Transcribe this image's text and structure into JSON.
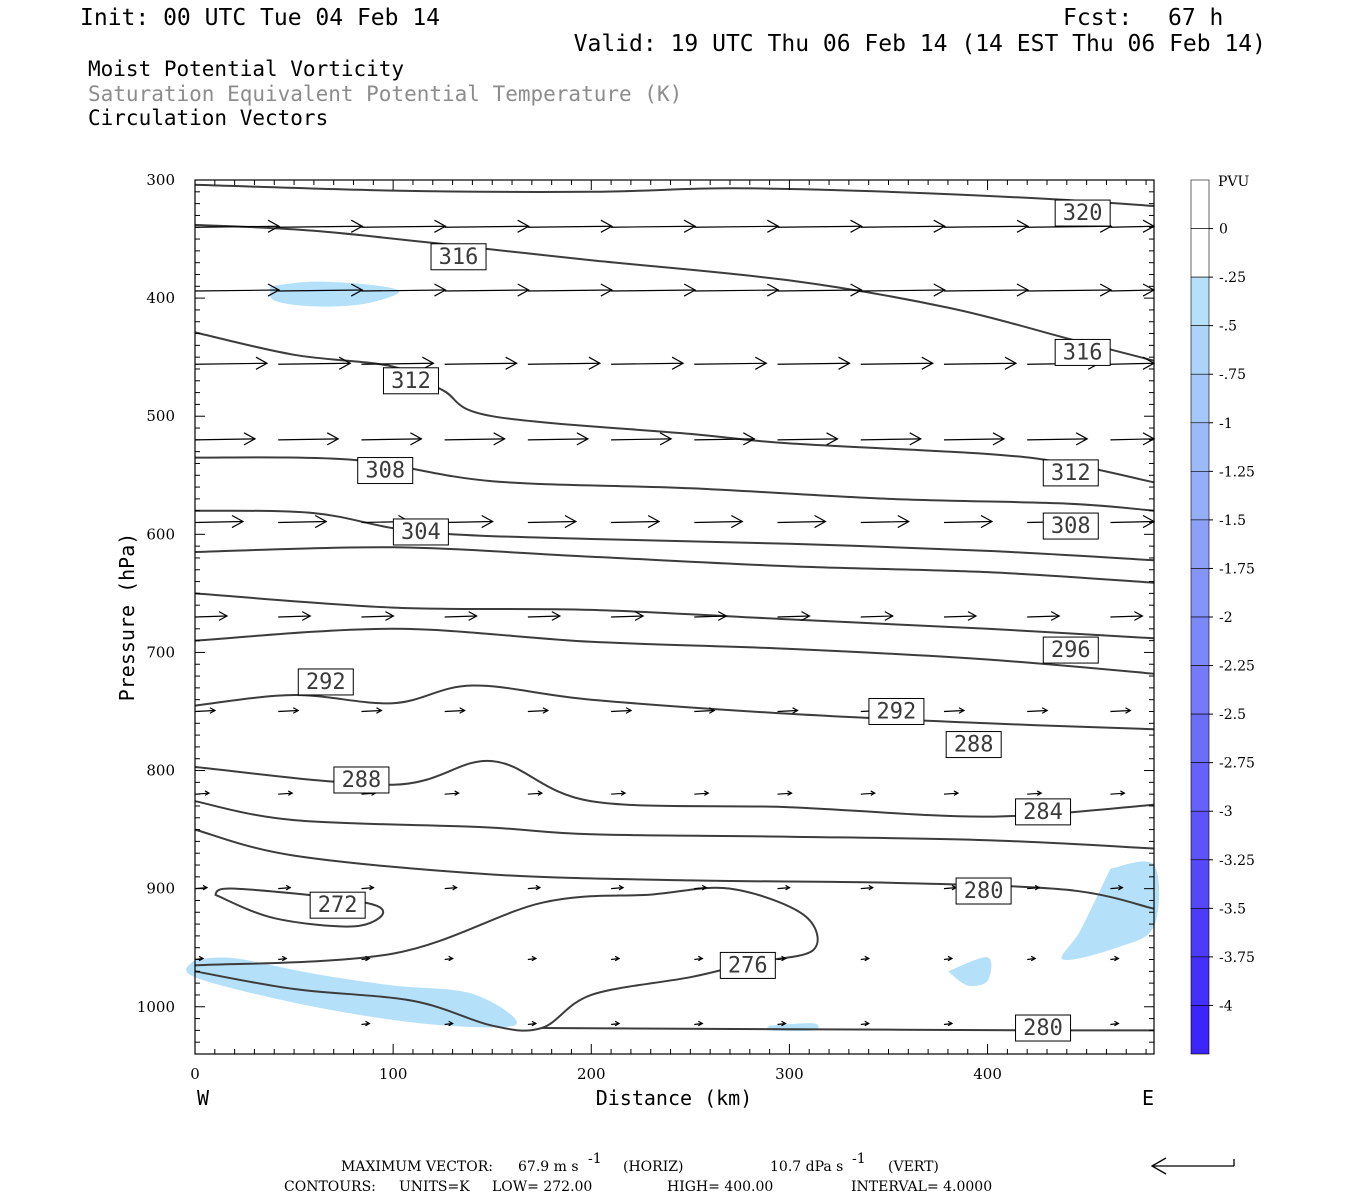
{
  "header": {
    "init": "Init: 00 UTC Tue 04 Feb 14",
    "fcst_label": "Fcst:",
    "fcst_value": "67 h",
    "valid": "Valid: 19 UTC Thu 06 Feb 14 (14 EST Thu 06 Feb 14)",
    "field1": "Moist Potential Vorticity",
    "field2": "Saturation Equivalent Potential Temperature (K)",
    "field3": "Circulation Vectors"
  },
  "colors": {
    "contour": "#3c3c3c",
    "pv_fill": "#b4e0fa",
    "grey_text": "#8c8c8c"
  },
  "chart_data": {
    "type": "cross-section",
    "xlabel": "Distance (km)",
    "ylabel": "Pressure (hPa)",
    "x_range": [
      0,
      484
    ],
    "y_range": [
      300,
      1040
    ],
    "x_ticks": [
      "0",
      "100",
      "200",
      "300",
      "400"
    ],
    "y_ticks": [
      "300",
      "400",
      "500",
      "600",
      "700",
      "800",
      "900",
      "1000"
    ],
    "x_ends": {
      "left": "W",
      "right": "E"
    },
    "colorbar": {
      "units": "PVU",
      "labels": [
        "0",
        "-.25",
        "-.5",
        "-.75",
        "-1",
        "-1.25",
        "-1.5",
        "-1.75",
        "-2",
        "-2.25",
        "-2.5",
        "-2.75",
        "-3",
        "-3.25",
        "-3.5",
        "-3.75",
        "-4"
      ],
      "colors": [
        "#ffffff",
        "#ffffff",
        "#b4e0fa",
        "#acd4fa",
        "#a4c8fa",
        "#9cbafa",
        "#94aefa",
        "#8ca0fa",
        "#8494fa",
        "#7c88fa",
        "#747afa",
        "#6c6efa",
        "#6462fa",
        "#5c54fa",
        "#5448fa",
        "#4c3cfa",
        "#4430fa",
        "#3c24fa"
      ]
    },
    "contours": [
      {
        "label": "320",
        "points": [
          [
            0,
            304
          ],
          [
            100,
            309
          ],
          [
            200,
            310
          ],
          [
            270,
            307
          ],
          [
            350,
            310
          ],
          [
            430,
            316
          ],
          [
            484,
            322
          ]
        ],
        "labels_at": [
          [
            448,
            328
          ]
        ]
      },
      {
        "label": "316",
        "points": [
          [
            0,
            338
          ],
          [
            60,
            343
          ],
          [
            140,
            357
          ],
          [
            200,
            368
          ],
          [
            300,
            385
          ],
          [
            380,
            408
          ],
          [
            440,
            434
          ],
          [
            484,
            453
          ]
        ],
        "labels_at": [
          [
            133,
            365
          ],
          [
            448,
            446
          ]
        ]
      },
      {
        "label": "312",
        "points": [
          [
            0,
            429
          ],
          [
            50,
            448
          ],
          [
            100,
            458
          ],
          [
            125,
            478
          ],
          [
            150,
            500
          ],
          [
            250,
            515
          ],
          [
            300,
            523
          ],
          [
            400,
            532
          ],
          [
            440,
            540
          ],
          [
            484,
            556
          ]
        ],
        "labels_at": [
          [
            109,
            470
          ],
          [
            442,
            548
          ]
        ]
      },
      {
        "label": "308",
        "points": [
          [
            0,
            535
          ],
          [
            80,
            537
          ],
          [
            150,
            555
          ],
          [
            250,
            561
          ],
          [
            350,
            570
          ],
          [
            440,
            574
          ],
          [
            484,
            580
          ]
        ],
        "labels_at": [
          [
            96,
            546
          ],
          [
            442,
            593
          ]
        ]
      },
      {
        "label": "304",
        "points": [
          [
            0,
            580
          ],
          [
            60,
            582
          ],
          [
            114,
            598
          ],
          [
            200,
            604
          ],
          [
            300,
            608
          ],
          [
            400,
            614
          ],
          [
            484,
            622
          ]
        ],
        "labels_at": [
          [
            114,
            598
          ]
        ]
      },
      {
        "label": "",
        "points": [
          [
            0,
            615
          ],
          [
            100,
            611
          ],
          [
            200,
            619
          ],
          [
            300,
            627
          ],
          [
            400,
            632
          ],
          [
            484,
            641
          ]
        ],
        "labels_at": []
      },
      {
        "label": "",
        "points": [
          [
            0,
            650
          ],
          [
            100,
            662
          ],
          [
            200,
            664
          ],
          [
            300,
            672
          ],
          [
            400,
            680
          ],
          [
            484,
            688
          ]
        ],
        "labels_at": []
      },
      {
        "label": "296",
        "points": [
          [
            0,
            690
          ],
          [
            100,
            680
          ],
          [
            200,
            691
          ],
          [
            300,
            697
          ],
          [
            400,
            706
          ],
          [
            484,
            718
          ]
        ],
        "labels_at": [
          [
            442,
            698
          ]
        ]
      },
      {
        "label": "292",
        "points": [
          [
            0,
            745
          ],
          [
            50,
            736
          ],
          [
            100,
            743
          ],
          [
            140,
            728
          ],
          [
            200,
            740
          ],
          [
            300,
            752
          ],
          [
            400,
            760
          ],
          [
            484,
            765
          ]
        ],
        "labels_at": [
          [
            66,
            725
          ],
          [
            354,
            750
          ]
        ]
      },
      {
        "label": "288",
        "points": [
          [
            0,
            797
          ],
          [
            100,
            812
          ],
          [
            150,
            792
          ],
          [
            200,
            826
          ],
          [
            300,
            831
          ],
          [
            400,
            839
          ],
          [
            484,
            829
          ]
        ],
        "labels_at": [
          [
            84,
            808
          ],
          [
            393,
            778
          ]
        ]
      },
      {
        "label": "284",
        "points": [
          [
            0,
            826
          ],
          [
            50,
            842
          ],
          [
            146,
            848
          ],
          [
            200,
            854
          ],
          [
            300,
            856
          ],
          [
            400,
            859
          ],
          [
            484,
            866
          ]
        ],
        "labels_at": [
          [
            428,
            835
          ]
        ]
      },
      {
        "label": "280",
        "points": [
          [
            0,
            850
          ],
          [
            50,
            872
          ],
          [
            150,
            888
          ],
          [
            250,
            893
          ],
          [
            350,
            895
          ],
          [
            440,
            901
          ],
          [
            484,
            917
          ]
        ],
        "labels_at": [
          [
            398,
            902
          ]
        ]
      },
      {
        "label": "276",
        "points": [
          [
            0,
            970
          ],
          [
            50,
            985
          ],
          [
            110,
            995
          ],
          [
            150,
            1016
          ],
          [
            175,
            1018
          ],
          [
            200,
            990
          ],
          [
            250,
            975
          ],
          [
            280,
            963
          ],
          [
            312,
            952
          ],
          [
            307,
            922
          ],
          [
            270,
            900
          ],
          [
            230,
            905
          ],
          [
            175,
            912
          ],
          [
            100,
            955
          ],
          [
            0,
            965
          ]
        ],
        "labels_at": [
          [
            279,
            965
          ]
        ]
      },
      {
        "label": "272",
        "points": [
          [
            10,
            905
          ],
          [
            40,
            925
          ],
          [
            80,
            932
          ],
          [
            95,
            920
          ],
          [
            80,
            910
          ],
          [
            20,
            900
          ],
          [
            10,
            905
          ]
        ],
        "labels_at": [
          [
            72,
            914
          ]
        ]
      },
      {
        "label": "280",
        "points": [
          [
            175,
            1018
          ],
          [
            300,
            1019
          ],
          [
            440,
            1020
          ],
          [
            484,
            1020
          ]
        ],
        "labels_at": [
          [
            428,
            1018
          ]
        ]
      }
    ],
    "pv_regions": [
      {
        "points": [
          [
            38,
            390
          ],
          [
            60,
            386
          ],
          [
            90,
            389
          ],
          [
            103,
            395
          ],
          [
            85,
            405
          ],
          [
            60,
            407
          ],
          [
            40,
            402
          ]
        ]
      },
      {
        "points": [
          [
            0,
            960
          ],
          [
            20,
            959
          ],
          [
            60,
            972
          ],
          [
            100,
            982
          ],
          [
            140,
            989
          ],
          [
            162,
            1015
          ],
          [
            120,
            1015
          ],
          [
            60,
            1000
          ],
          [
            0,
            975
          ]
        ]
      },
      {
        "points": [
          [
            462,
            883
          ],
          [
            484,
            880
          ],
          [
            484,
            932
          ],
          [
            465,
            950
          ],
          [
            438,
            960
          ],
          [
            447,
            935
          ]
        ]
      },
      {
        "points": [
          [
            380,
            970
          ],
          [
            400,
            958
          ],
          [
            400,
            978
          ],
          [
            390,
            982
          ]
        ]
      },
      {
        "points": [
          [
            290,
            1016
          ],
          [
            312,
            1014
          ],
          [
            312,
            1020
          ],
          [
            290,
            1020
          ]
        ]
      }
    ],
    "vector_levels": [
      {
        "p": 340,
        "length": 42,
        "xs": [
          0,
          42,
          84,
          126,
          168,
          210,
          252,
          294,
          336,
          378,
          420,
          462
        ]
      },
      {
        "p": 394,
        "length": 42,
        "xs": [
          0,
          42,
          84,
          126,
          168,
          210,
          252,
          294,
          336,
          378,
          420,
          462
        ]
      },
      {
        "p": 456,
        "length": 36,
        "xs": [
          0,
          42,
          84,
          126,
          168,
          210,
          252,
          294,
          336,
          378,
          420,
          462
        ]
      },
      {
        "p": 520,
        "length": 30,
        "xs": [
          0,
          42,
          84,
          126,
          168,
          210,
          252,
          294,
          336,
          378,
          420,
          462
        ]
      },
      {
        "p": 590,
        "length": 24,
        "xs": [
          0,
          42,
          84,
          126,
          168,
          210,
          252,
          294,
          336,
          378,
          420,
          462
        ]
      },
      {
        "p": 670,
        "length": 16,
        "xs": [
          0,
          42,
          84,
          126,
          168,
          210,
          252,
          294,
          336,
          378,
          420,
          462
        ]
      },
      {
        "p": 750,
        "length": 10,
        "xs": [
          0,
          42,
          84,
          126,
          168,
          210,
          252,
          294,
          336,
          378,
          420,
          462
        ]
      },
      {
        "p": 820,
        "length": 7,
        "xs": [
          0,
          42,
          84,
          126,
          168,
          210,
          252,
          294,
          336,
          378,
          420,
          462
        ]
      },
      {
        "p": 900,
        "length": 6,
        "xs": [
          0,
          42,
          84,
          126,
          168,
          210,
          252,
          294,
          336,
          378,
          420,
          462
        ]
      },
      {
        "p": 960,
        "length": 4,
        "xs": [
          0,
          42,
          84,
          126,
          168,
          210,
          252,
          294,
          336,
          378,
          420,
          462
        ]
      },
      {
        "p": 1015,
        "length": 4,
        "xs": [
          84,
          126,
          168,
          210,
          252,
          294,
          336,
          378,
          420,
          462
        ]
      }
    ],
    "max_vector": {
      "label": "MAXIMUM VECTOR:",
      "horiz_value": "67.9 m s",
      "horiz_exp": "-1",
      "horiz_tag": "(HORIZ)",
      "vert_value": "10.7 dPa s",
      "vert_exp": "-1",
      "vert_tag": "(VERT)"
    },
    "contours_info": {
      "label": "CONTOURS:",
      "units": "UNITS=K",
      "low": "LOW=  272.00",
      "high": "HIGH=  400.00",
      "interval": "INTERVAL=   4.0000"
    }
  }
}
